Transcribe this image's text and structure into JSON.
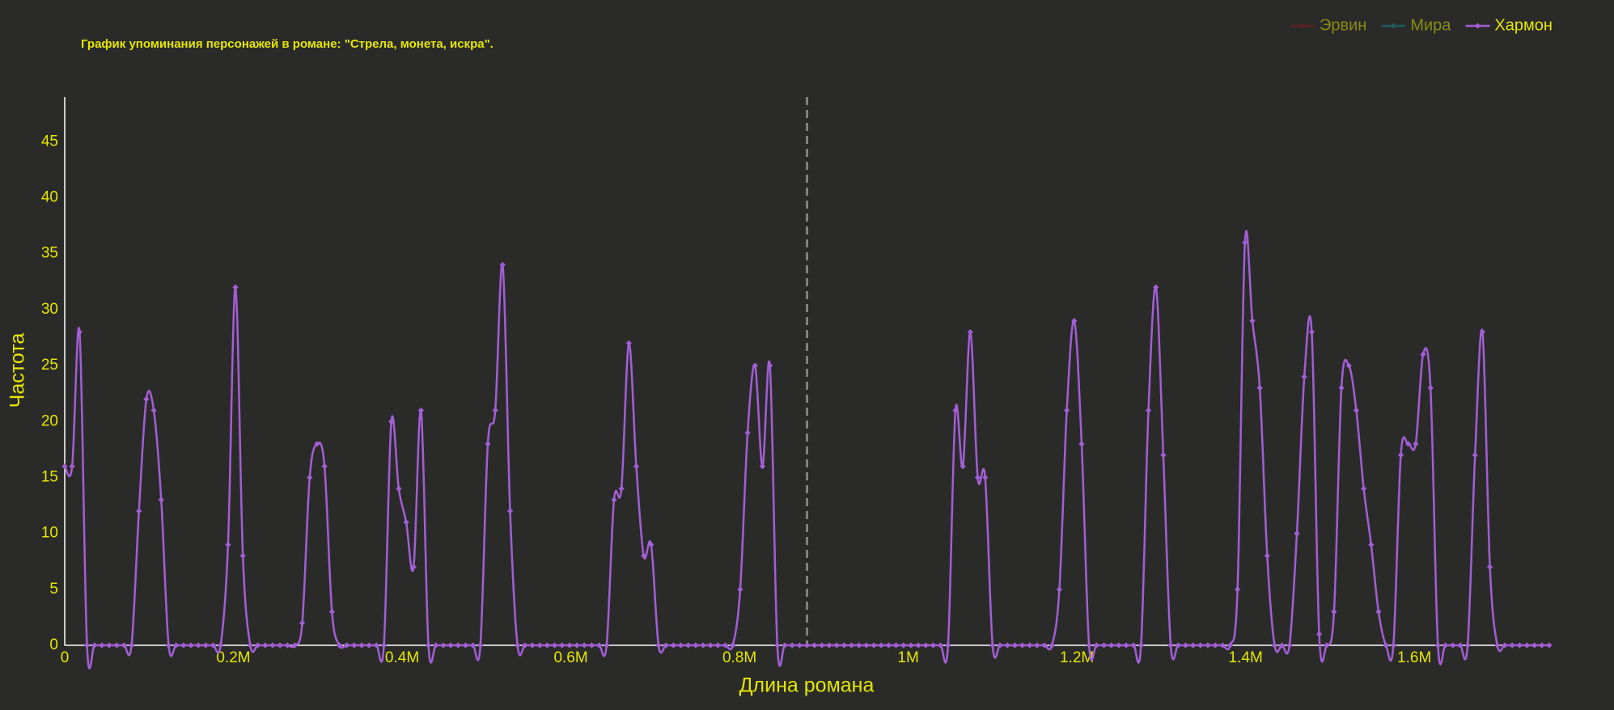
{
  "chart_data": {
    "type": "line",
    "title": "График упоминания персонажей в романе: \"Стрела, монета, искра\".",
    "x_label": "Длина романа",
    "y_label": "Частота",
    "x": [
      0,
      8800,
      17600,
      26400,
      35200,
      44000,
      52800,
      61600,
      70400,
      79200,
      88000,
      96800,
      105600,
      114400,
      123200,
      132000,
      140800,
      149600,
      158400,
      167200,
      176000,
      184800,
      193600,
      202400,
      211200,
      220000,
      228800,
      237600,
      246400,
      255200,
      264000,
      272800,
      281600,
      290400,
      299200,
      308000,
      316800,
      325600,
      334400,
      343200,
      352000,
      360800,
      369600,
      378400,
      387200,
      396000,
      404800,
      413600,
      422400,
      431200,
      440000,
      448800,
      457600,
      466400,
      475200,
      484000,
      492800,
      501600,
      510400,
      519200,
      528000,
      536800,
      545600,
      554400,
      563200,
      572000,
      580800,
      589600,
      598400,
      607200,
      616000,
      624800,
      633600,
      642400,
      651200,
      660000,
      668800,
      677600,
      686400,
      695200,
      704000,
      712800,
      721600,
      730400,
      739200,
      748000,
      756800,
      765600,
      774400,
      783200,
      792000,
      800800,
      809600,
      818400,
      827200,
      836000,
      844800,
      853600,
      862400,
      871200,
      880000,
      888800,
      897600,
      906400,
      915200,
      924000,
      932800,
      941600,
      950400,
      959200,
      968000,
      976800,
      985600,
      994400,
      1003200,
      1012000,
      1020800,
      1029600,
      1038400,
      1047200,
      1056000,
      1064800,
      1073600,
      1082400,
      1091200,
      1100000,
      1108800,
      1117600,
      1126400,
      1135200,
      1144000,
      1152800,
      1161600,
      1170400,
      1179200,
      1188000,
      1196800,
      1205600,
      1214400,
      1223200,
      1232000,
      1240800,
      1249600,
      1258400,
      1267200,
      1276000,
      1284800,
      1293600,
      1302400,
      1311200,
      1320000,
      1328800,
      1337600,
      1346400,
      1355200,
      1364000,
      1372800,
      1381600,
      1390400,
      1399200,
      1408000,
      1416800,
      1425600,
      1434400,
      1443200,
      1452000,
      1460800,
      1469600,
      1478400,
      1487200,
      1496000,
      1504800,
      1513600,
      1522400,
      1531200,
      1540000,
      1548800,
      1557600,
      1566400,
      1575200,
      1584000,
      1592800,
      1601600,
      1610400,
      1619200,
      1628000,
      1636800,
      1645600,
      1654400,
      1663200,
      1672000,
      1680800,
      1689600,
      1698400,
      1707200,
      1716000,
      1724800,
      1733600,
      1742400,
      1751200,
      1760000
    ],
    "series": [
      {
        "name": "Эрвин",
        "color": "#8b1a1a",
        "visible": "legendonly"
      },
      {
        "name": "Мира",
        "color": "#17899b",
        "visible": "legendonly"
      },
      {
        "name": "Хармон",
        "color": "#a35ed6",
        "values": [
          16,
          16,
          28,
          0,
          0,
          0,
          0,
          0,
          0,
          0,
          12,
          22,
          21,
          13,
          0,
          0,
          0,
          0,
          0,
          0,
          0,
          0,
          9,
          32,
          8,
          0,
          0,
          0,
          0,
          0,
          0,
          0,
          2,
          15,
          18,
          16,
          3,
          0,
          0,
          0,
          0,
          0,
          0,
          0,
          20,
          14,
          11,
          7,
          21,
          0,
          0,
          0,
          0,
          0,
          0,
          0,
          0,
          18,
          21,
          34,
          12,
          0,
          0,
          0,
          0,
          0,
          0,
          0,
          0,
          0,
          0,
          0,
          0,
          0,
          13,
          14,
          27,
          16,
          8,
          9,
          0,
          0,
          0,
          0,
          0,
          0,
          0,
          0,
          0,
          0,
          0,
          5,
          19,
          25,
          16,
          25,
          0,
          0,
          0,
          0,
          0,
          0,
          0,
          0,
          0,
          0,
          0,
          0,
          0,
          0,
          0,
          0,
          0,
          0,
          0,
          0,
          0,
          0,
          0,
          0,
          21,
          16,
          28,
          15,
          15,
          0,
          0,
          0,
          0,
          0,
          0,
          0,
          0,
          0,
          5,
          21,
          29,
          18,
          0,
          0,
          0,
          0,
          0,
          0,
          0,
          0,
          21,
          32,
          17,
          0,
          0,
          0,
          0,
          0,
          0,
          0,
          0,
          0,
          5,
          36,
          29,
          23,
          8,
          0,
          0,
          0,
          10,
          24,
          28,
          1,
          0,
          3,
          23,
          25,
          21,
          14,
          9,
          3,
          0,
          0,
          17,
          18,
          18,
          26,
          23,
          0,
          0,
          0,
          0,
          0,
          17,
          28,
          7,
          0,
          0,
          0,
          0,
          0,
          0,
          0,
          0
        ]
      }
    ],
    "vertical_line": {
      "x": 880000,
      "color": "#808080",
      "dash": "dash"
    },
    "xlim": [
      0,
      1760000
    ],
    "ylim": [
      0,
      49
    ],
    "xticks": [
      0,
      {
        "value": 200000,
        "label": "0.2M"
      },
      {
        "value": 400000,
        "label": "0.4M"
      },
      {
        "value": 600000,
        "label": "0.6M"
      },
      {
        "value": 800000,
        "label": "0.8M"
      },
      {
        "value": 1000000,
        "label": "1M"
      },
      {
        "value": 1200000,
        "label": "1.2M"
      },
      {
        "value": 1400000,
        "label": "1.4M"
      },
      {
        "value": 1600000,
        "label": "1.6M"
      }
    ],
    "yticks": [
      0,
      5,
      10,
      15,
      20,
      25,
      30,
      35,
      40,
      45
    ],
    "grid": false,
    "legend": "top-right"
  }
}
